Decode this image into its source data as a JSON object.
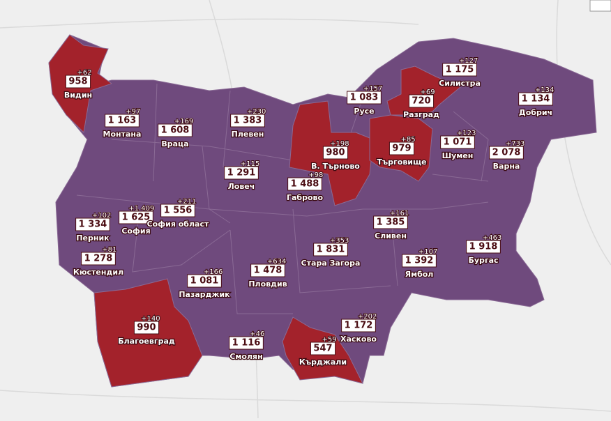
{
  "regions": [
    {
      "name": "Видин",
      "value": "958",
      "delta": "+62",
      "color": "#a3222b"
    },
    {
      "name": "Монтана",
      "value": "1 163",
      "delta": "+97",
      "color": "#6f4a7d"
    },
    {
      "name": "Враца",
      "value": "1 608",
      "delta": "+169",
      "color": "#6f4a7d"
    },
    {
      "name": "Плевен",
      "value": "1 383",
      "delta": "+230",
      "color": "#6f4a7d"
    },
    {
      "name": "Русе",
      "value": "1 083",
      "delta": "+157",
      "color": "#6f4a7d"
    },
    {
      "name": "Разград",
      "value": "720",
      "delta": "+69",
      "color": "#a3222b"
    },
    {
      "name": "Силистра",
      "value": "1 175",
      "delta": "+127",
      "color": "#6f4a7d"
    },
    {
      "name": "Добрич",
      "value": "1 134",
      "delta": "+134",
      "color": "#6f4a7d"
    },
    {
      "name": "В. Търново",
      "value": "980",
      "delta": "+198",
      "color": "#a3222b"
    },
    {
      "name": "Търговище",
      "value": "979",
      "delta": "+85",
      "color": "#a3222b"
    },
    {
      "name": "Шумен",
      "value": "1 071",
      "delta": "+123",
      "color": "#6f4a7d"
    },
    {
      "name": "Варна",
      "value": "2 078",
      "delta": "+733",
      "color": "#6f4a7d"
    },
    {
      "name": "Ловеч",
      "value": "1 291",
      "delta": "+115",
      "color": "#6f4a7d"
    },
    {
      "name": "Габрово",
      "value": "1 488",
      "delta": "+98",
      "color": "#6f4a7d"
    },
    {
      "name": "Перник",
      "value": "1 334",
      "delta": "+102",
      "color": "#6f4a7d"
    },
    {
      "name": "София",
      "value": "1 625",
      "delta": "+1 409",
      "color": "#6f4a7d"
    },
    {
      "name": "София област",
      "value": "1 556",
      "delta": "+211",
      "color": "#6f4a7d"
    },
    {
      "name": "Сливен",
      "value": "1 385",
      "delta": "+161",
      "color": "#6f4a7d"
    },
    {
      "name": "Кюстендил",
      "value": "1 278",
      "delta": "+81",
      "color": "#6f4a7d"
    },
    {
      "name": "Стара Загора",
      "value": "1 831",
      "delta": "+353",
      "color": "#6f4a7d"
    },
    {
      "name": "Бургас",
      "value": "1 918",
      "delta": "+463",
      "color": "#6f4a7d"
    },
    {
      "name": "Ямбол",
      "value": "1 392",
      "delta": "+107",
      "color": "#6f4a7d"
    },
    {
      "name": "Пловдив",
      "value": "1 478",
      "delta": "+634",
      "color": "#6f4a7d"
    },
    {
      "name": "Пазарджик",
      "value": "1 081",
      "delta": "+166",
      "color": "#6f4a7d"
    },
    {
      "name": "Благоевград",
      "value": "990",
      "delta": "+140",
      "color": "#a3222b"
    },
    {
      "name": "Хасково",
      "value": "1 172",
      "delta": "+202",
      "color": "#6f4a7d"
    },
    {
      "name": "Смолян",
      "value": "1 116",
      "delta": "+46",
      "color": "#6f4a7d"
    },
    {
      "name": "Кърджали",
      "value": "547",
      "delta": "+59",
      "color": "#a3222b"
    }
  ]
}
